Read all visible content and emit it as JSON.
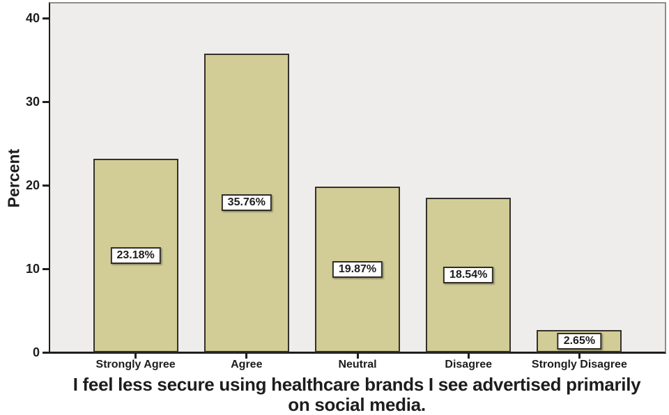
{
  "figure": {
    "title_lines": [
      "I feel less secure using healthcare brands I see advertised primarily",
      "on social media."
    ]
  },
  "chart_data": {
    "type": "bar",
    "title": "I feel less secure using healthcare brands I see advertised primarily on social media.",
    "xlabel": "",
    "ylabel": "Percent",
    "categories": [
      "Strongly Agree",
      "Agree",
      "Neutral",
      "Disagree",
      "Strongly Disagree"
    ],
    "values": [
      23.18,
      35.76,
      19.87,
      18.54,
      2.65
    ],
    "value_labels": [
      "23.18%",
      "35.76%",
      "19.87%",
      "18.54%",
      "2.65%"
    ],
    "ylim": [
      0,
      40
    ],
    "yticks": [
      0,
      10,
      20,
      30,
      40
    ],
    "grid": false,
    "legend": false,
    "layout_hints": {
      "value_label_position": "centered-in-bar",
      "plot_background": "light-gray",
      "title_position": "bottom"
    },
    "colors": {
      "bar_fill": "#d2cc96",
      "bar_border": "#33312a",
      "plot_bg": "#eeedeb",
      "axis": "#1e1e1e",
      "text": "#1d1d1d",
      "value_label_bg": "#ffffff",
      "value_label_border": "#2f2e28",
      "outer_bg": "#ffffff"
    }
  }
}
